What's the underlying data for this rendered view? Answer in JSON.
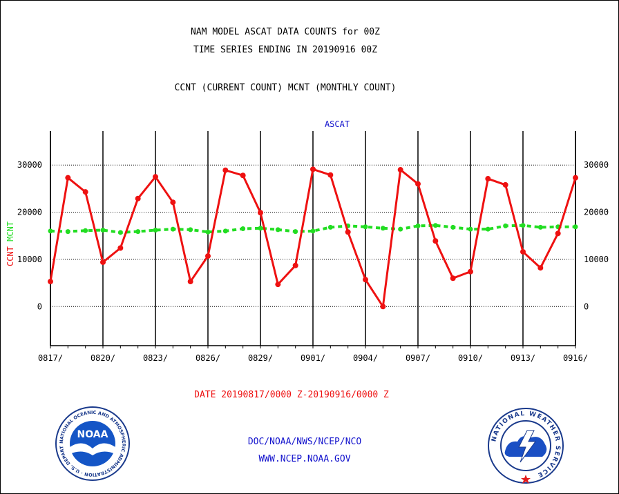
{
  "header": {
    "title_line1": "NAM MODEL ASCAT DATA COUNTS for 00Z",
    "title_line2": "TIME SERIES ENDING IN 20190916 00Z",
    "subtitle": "CCNT (CURRENT COUNT) MCNT (MONTHLY COUNT)"
  },
  "footer": {
    "date_range": "DATE 20190817/0000 Z-20190916/0000 Z",
    "org_line": "DOC/NOAA/NWS/NCEP/NCO",
    "url": "WWW.NCEP.NOAA.GOV"
  },
  "logos": {
    "noaa": {
      "center_text": "NOAA",
      "ring_text": "NATIONAL OCEANIC AND ATMOSPHERIC ADMINISTRATION · U.S. DEPARTMENT OF COMMERCE ·"
    },
    "nws": {
      "ring_text": "NATIONAL WEATHER SERVICE"
    }
  },
  "colors": {
    "ccnt": "#ee1111",
    "mcnt": "#22dd22",
    "panel_title": "#1111cc",
    "footer_link": "#1111cc",
    "date_range": "#ee1111"
  },
  "chart_data": {
    "type": "line",
    "title": "ASCAT",
    "ylabel_parts": [
      {
        "text": "CCNT",
        "color": "#ee1111"
      },
      {
        "text": "MCNT",
        "color": "#22dd22"
      }
    ],
    "x": [
      "0817",
      "0818",
      "0819",
      "0820",
      "0821",
      "0822",
      "0823",
      "0824",
      "0825",
      "0826",
      "0827",
      "0828",
      "0829",
      "0830",
      "0831",
      "0901",
      "0902",
      "0903",
      "0904",
      "0905",
      "0906",
      "0907",
      "0908",
      "0909",
      "0910",
      "0911",
      "0912",
      "0913",
      "0914",
      "0915",
      "0916"
    ],
    "x_tick_labels": [
      "0817/",
      "0820/",
      "0823/",
      "0826/",
      "0829/",
      "0901/",
      "0904/",
      "0907/",
      "0910/",
      "0913/",
      "0916/"
    ],
    "x_tick_indices": [
      0,
      3,
      6,
      9,
      12,
      15,
      18,
      21,
      24,
      27,
      30
    ],
    "series": [
      {
        "name": "CCNT",
        "color": "#ee1111",
        "values": [
          5300,
          27300,
          24300,
          9400,
          12400,
          22900,
          27500,
          22100,
          5300,
          10700,
          28900,
          27800,
          19900,
          4700,
          8700,
          29100,
          27900,
          15800,
          5700,
          0,
          29000,
          26000,
          13900,
          6000,
          7400,
          27100,
          25800,
          11600,
          8200,
          15500,
          27300
        ]
      },
      {
        "name": "MCNT",
        "color": "#22dd22",
        "values": [
          16000,
          15900,
          16100,
          16200,
          15700,
          15900,
          16200,
          16400,
          16300,
          15800,
          16000,
          16500,
          16600,
          16300,
          15900,
          16000,
          16800,
          17100,
          16900,
          16600,
          16400,
          17100,
          17200,
          16800,
          16400,
          16400,
          17100,
          17200,
          16800,
          16900,
          16900
        ]
      }
    ],
    "yticks": [
      0,
      10000,
      20000,
      30000
    ],
    "ylim": [
      -8300,
      37200
    ],
    "grid": true
  }
}
